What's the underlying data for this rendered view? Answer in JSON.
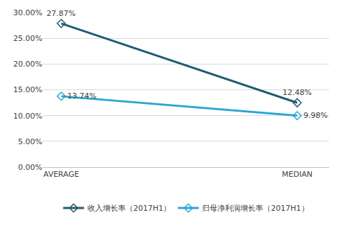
{
  "chart_data": {
    "type": "line",
    "categories": [
      "AVERAGE",
      "MEDIAN"
    ],
    "series": [
      {
        "name": "收入增长率（2017H1）",
        "color": "#1f5c6f",
        "values": [
          27.87,
          12.48
        ],
        "value_labels": [
          "27.87%",
          "12.48%"
        ],
        "marker": "diamond-open"
      },
      {
        "name": "归母净利润增长率（2017H1）",
        "color": "#2aa6d6",
        "values": [
          13.74,
          9.98
        ],
        "value_labels": [
          "13.74%",
          "9.98%"
        ],
        "marker": "diamond-open"
      }
    ],
    "ylim": [
      0,
      30
    ],
    "yticks": [
      {
        "value": 0,
        "label": "0.00%"
      },
      {
        "value": 5,
        "label": "5.00%"
      },
      {
        "value": 10,
        "label": "10.00%"
      },
      {
        "value": 15,
        "label": "15.00%"
      },
      {
        "value": 20,
        "label": "20.00%"
      },
      {
        "value": 25,
        "label": "25.00%"
      },
      {
        "value": 30,
        "label": "30.00%"
      }
    ],
    "grid": true,
    "legend": "bottom",
    "data_labels": true
  }
}
